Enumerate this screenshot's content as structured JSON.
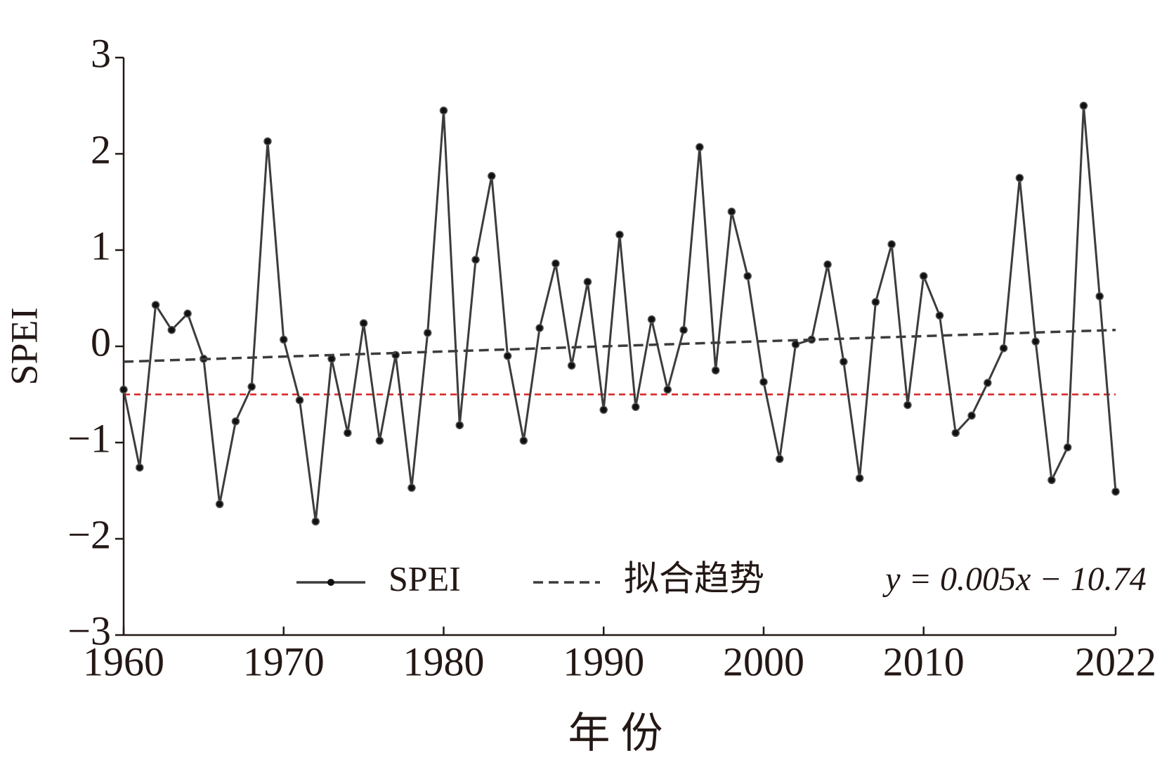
{
  "chart_data": {
    "type": "line",
    "x": [
      1960,
      1961,
      1962,
      1963,
      1964,
      1965,
      1966,
      1967,
      1968,
      1969,
      1970,
      1971,
      1972,
      1973,
      1974,
      1975,
      1976,
      1977,
      1978,
      1979,
      1980,
      1981,
      1982,
      1983,
      1984,
      1985,
      1986,
      1987,
      1988,
      1989,
      1990,
      1991,
      1992,
      1993,
      1994,
      1995,
      1996,
      1997,
      1998,
      1999,
      2000,
      2001,
      2002,
      2003,
      2004,
      2005,
      2006,
      2007,
      2008,
      2009,
      2010,
      2011,
      2012,
      2013,
      2014,
      2015,
      2016,
      2017,
      2018,
      2019,
      2020,
      2021,
      2022
    ],
    "series": [
      {
        "name": "SPEI",
        "color": "#3c3c3c",
        "markers": true,
        "values": [
          -0.45,
          -1.26,
          0.43,
          0.17,
          0.34,
          -0.13,
          -1.64,
          -0.78,
          -0.42,
          2.13,
          0.07,
          -0.56,
          -1.82,
          -0.13,
          -0.9,
          0.24,
          -0.98,
          -0.09,
          -1.47,
          0.14,
          2.45,
          -0.82,
          0.9,
          1.77,
          -0.1,
          -0.98,
          0.19,
          0.86,
          -0.2,
          0.67,
          -0.66,
          1.16,
          -0.63,
          0.28,
          -0.45,
          0.17,
          2.07,
          -0.25,
          1.4,
          0.73,
          -0.37,
          -1.17,
          0.02,
          0.07,
          0.85,
          -0.16,
          -1.37,
          0.46,
          1.06,
          -0.61,
          0.73,
          0.32,
          -0.9,
          -0.72,
          -0.38,
          -0.02,
          1.75,
          0.05,
          -1.39,
          -1.05,
          2.5,
          0.52,
          -1.51
        ]
      },
      {
        "name": "拟合趋势",
        "color": "#3c3c3c",
        "dashed": true,
        "x": [
          1960,
          2022
        ],
        "values": [
          -0.16,
          0.17
        ]
      }
    ],
    "reference_line": {
      "value": -0.5,
      "color": "#d62020"
    },
    "annotation": "y = 0.005x − 10.74",
    "xlabel": "年 份",
    "ylabel": "SPEI",
    "xlim": [
      1960,
      2022
    ],
    "xticks": [
      1960,
      1970,
      1980,
      1990,
      2000,
      2010,
      2022
    ],
    "ylim": [
      -3,
      3
    ],
    "yticks": [
      {
        "value": -3,
        "label": "−3"
      },
      {
        "value": -2,
        "label": "−2"
      },
      {
        "value": -1,
        "label": "−1"
      },
      0,
      1,
      2,
      3
    ]
  }
}
